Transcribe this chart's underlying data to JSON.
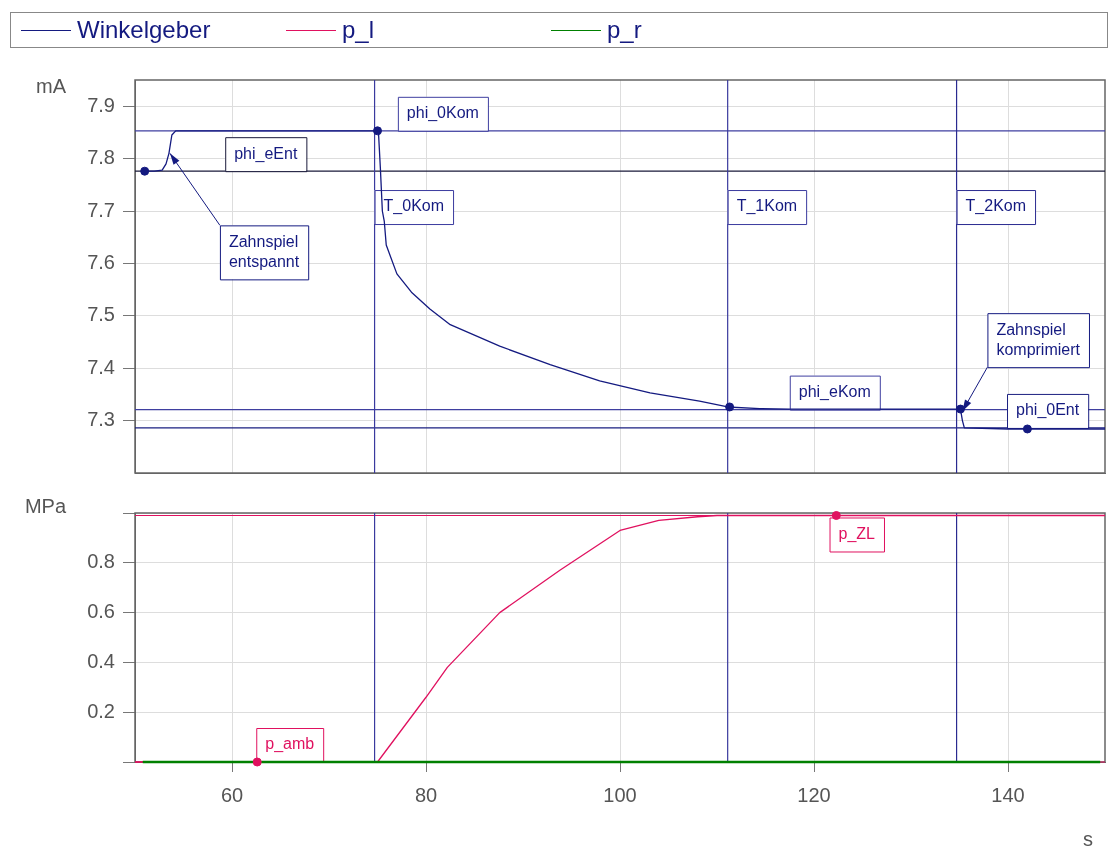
{
  "chart_data": [
    {
      "type": "line",
      "ylabel": "mA",
      "legend": "top",
      "grid": true,
      "tick_labels": "y",
      "xlim": [
        50,
        150
      ],
      "xticks": [
        60,
        80,
        100,
        120,
        140
      ],
      "ylim": [
        7.2,
        7.95
      ],
      "yticks": [
        7.3,
        7.4,
        7.5,
        7.6,
        7.7,
        7.8,
        7.9
      ],
      "series": [
        {
          "name": "Winkelgeber",
          "color": "#141a80",
          "x": [
            50.8,
            52,
            52.8,
            53.2,
            53.5,
            53.8,
            54.2,
            60,
            70,
            75,
            75.1,
            75.3,
            75.5,
            75.7,
            75.9,
            77,
            78.5,
            80.4,
            82.5,
            87.6,
            92.8,
            97.9,
            103.1,
            108.2,
            111.1,
            114.4,
            117.5,
            125,
            134.7,
            135.1,
            135.3,
            135.5,
            140,
            150
          ],
          "values": [
            7.776,
            7.776,
            7.778,
            7.79,
            7.81,
            7.845,
            7.853,
            7.853,
            7.853,
            7.853,
            7.85,
            7.78,
            7.7,
            7.68,
            7.635,
            7.58,
            7.545,
            7.513,
            7.483,
            7.442,
            7.407,
            7.376,
            7.353,
            7.337,
            7.326,
            7.323,
            7.322,
            7.322,
            7.322,
            7.322,
            7.3,
            7.286,
            7.284,
            7.284
          ]
        },
        {
          "type": "scatter",
          "marker": "circle",
          "color": "#141a80",
          "x": [
            51,
            75,
            111.3,
            135.1,
            142
          ],
          "values": [
            7.776,
            7.853,
            7.326,
            7.322,
            7.284
          ]
        }
      ],
      "ref_lines": [
        {
          "axis": "y",
          "value": 7.853,
          "label": "phi_0Kom",
          "color": "#3f3fa0"
        },
        {
          "axis": "y",
          "value": 7.776,
          "label": "phi_eEnt",
          "color": "#1a1a3a"
        },
        {
          "axis": "y",
          "value": 7.321,
          "label": "phi_eKom",
          "color": "#3f3fa0"
        },
        {
          "axis": "y",
          "value": 7.286,
          "label": "phi_0Ent",
          "color": "#1a1f80"
        },
        {
          "axis": "x",
          "value": 74.7,
          "label": "T_0Kom",
          "color": "#3a3a9e"
        },
        {
          "axis": "x",
          "value": 111.1,
          "label": "T_1Kom",
          "color": "#3a3a9e"
        },
        {
          "axis": "x",
          "value": 134.7,
          "label": "T_2Kom",
          "color": "#2a2a90"
        }
      ],
      "annotations": [
        {
          "text": "Zahnspiel entspannt",
          "x": 53.6,
          "y": 7.81
        },
        {
          "text": "Zahnspiel komprimiert",
          "x": 135.3,
          "y": 7.318
        }
      ]
    },
    {
      "type": "line",
      "ylabel": "MPa",
      "xlabel": "s",
      "legend": "top",
      "grid": true,
      "xlim": [
        50,
        150
      ],
      "xticks": [
        60,
        80,
        100,
        120,
        140
      ],
      "ylim": [
        0,
        1
      ],
      "yticks": [
        {
          "value": 0,
          "label": null
        },
        0.2,
        0.4,
        0.6,
        0.8,
        {
          "value": 1,
          "label": null
        }
      ],
      "series": [
        {
          "name": "p_l",
          "color": "#e0115f",
          "x": [
            50,
            75,
            80,
            82.2,
            87.6,
            93.8,
            100,
            104,
            108,
            110,
            150
          ],
          "values": [
            0,
            0,
            0.26,
            0.38,
            0.6,
            0.77,
            0.93,
            0.97,
            0.985,
            0.99,
            0.99
          ]
        },
        {
          "name": "p_r",
          "color": "#008000",
          "x": [
            50.8,
            149.5
          ],
          "values": [
            0,
            0
          ]
        },
        {
          "type": "scatter",
          "marker": "circle",
          "color": "#e0115f",
          "x": [
            62.6,
            122.3
          ],
          "values": [
            0,
            0.99
          ]
        }
      ],
      "ref_lines": [
        {
          "axis": "y",
          "value": 0.99,
          "label": "p_ZL",
          "color": "#e0115f"
        },
        {
          "axis": "y",
          "value": 0,
          "label": "p_amb",
          "color": "#e0115f"
        },
        {
          "axis": "x",
          "value": 74.7,
          "color": "#3a3a9e"
        },
        {
          "axis": "x",
          "value": 111.1,
          "color": "#3a3a9e"
        },
        {
          "axis": "x",
          "value": 134.7,
          "color": "#2a2a90"
        }
      ]
    }
  ]
}
